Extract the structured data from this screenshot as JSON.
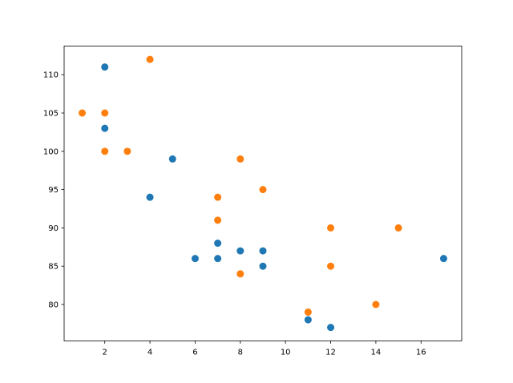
{
  "chart_data": {
    "type": "scatter",
    "title": "",
    "xlabel": "",
    "ylabel": "",
    "xlim": [
      0.2,
      17.8
    ],
    "ylim": [
      75.25,
      113.75
    ],
    "grid": false,
    "xticks": [
      2,
      4,
      6,
      8,
      10,
      12,
      14,
      16
    ],
    "yticks": [
      80,
      85,
      90,
      95,
      100,
      105,
      110
    ],
    "series": [
      {
        "color": "#1f77b4",
        "x": [
          5,
          7,
          8,
          7,
          2,
          17,
          2,
          9,
          4,
          11,
          12,
          9,
          6
        ],
        "y": [
          99,
          86,
          87,
          88,
          111,
          86,
          103,
          87,
          94,
          78,
          77,
          85,
          86
        ]
      },
      {
        "color": "#ff7f0e",
        "x": [
          2,
          2,
          8,
          1,
          15,
          8,
          12,
          9,
          7,
          3,
          11,
          4,
          7,
          14,
          12
        ],
        "y": [
          100,
          105,
          84,
          105,
          90,
          99,
          90,
          95,
          94,
          100,
          79,
          112,
          91,
          80,
          85
        ]
      }
    ]
  }
}
